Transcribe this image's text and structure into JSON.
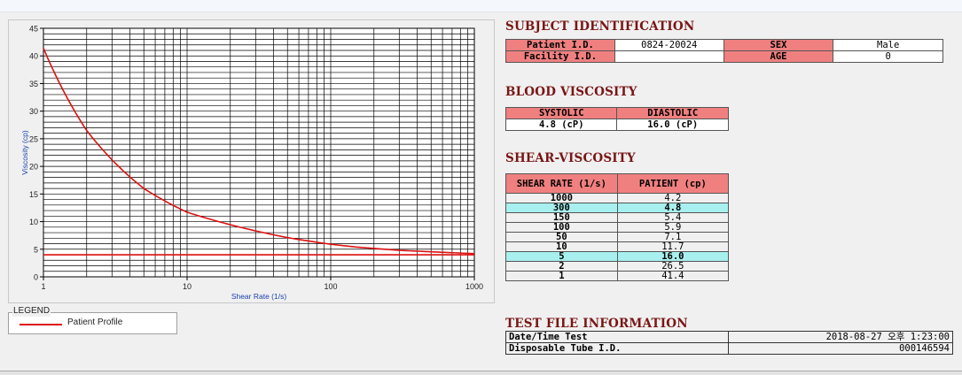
{
  "chart_data": {
    "type": "line",
    "xlabel": "Shear Rate (1/s)",
    "ylabel": "Viscosity (cp)",
    "xscale": "log",
    "xlim": [
      1,
      1000
    ],
    "ylim": [
      0,
      45
    ],
    "x_ticks": [
      "1",
      "10",
      "100",
      "1000"
    ],
    "y_ticks": [
      "0",
      "5",
      "10",
      "15",
      "20",
      "25",
      "30",
      "35",
      "40",
      "45"
    ],
    "grid": true,
    "series": [
      {
        "name": "Patient Profile",
        "color": "#dd1111",
        "x": [
          1,
          2,
          5,
          10,
          50,
          100,
          150,
          300,
          1000
        ],
        "y": [
          41.4,
          26.5,
          16.0,
          11.7,
          7.1,
          5.9,
          5.4,
          4.8,
          4.2
        ]
      },
      {
        "color": "#dd1111",
        "x": [
          1,
          1000
        ],
        "y": [
          4.0,
          4.0
        ]
      }
    ]
  },
  "legend": {
    "title": "LEGEND",
    "items": [
      {
        "label": "Patient Profile",
        "color": "#dd1111"
      }
    ]
  },
  "subject": {
    "title": "SUBJECT IDENTIFICATION",
    "patient_id_label": "Patient I.D.",
    "patient_id": "0824-20024",
    "sex_label": "SEX",
    "sex": "Male",
    "facility_id_label": "Facility I.D.",
    "facility_id": "",
    "age_label": "AGE",
    "age": "0"
  },
  "blood_viscosity": {
    "title": "BLOOD VISCOSITY",
    "systolic_label": "SYSTOLIC",
    "diastolic_label": "DIASTOLIC",
    "systolic": "4.8 (cP)",
    "diastolic": "16.0 (cP)"
  },
  "shear_viscosity": {
    "title": "SHEAR-VISCOSITY",
    "col_rate": "SHEAR RATE (1/s)",
    "col_patient": "PATIENT (cp)",
    "rows": [
      {
        "rate": "1000",
        "patient": "4.2",
        "highlight": false
      },
      {
        "rate": "300",
        "patient": "4.8",
        "highlight": true
      },
      {
        "rate": "150",
        "patient": "5.4",
        "highlight": false
      },
      {
        "rate": "100",
        "patient": "5.9",
        "highlight": false
      },
      {
        "rate": "50",
        "patient": "7.1",
        "highlight": false
      },
      {
        "rate": "10",
        "patient": "11.7",
        "highlight": false
      },
      {
        "rate": "5",
        "patient": "16.0",
        "highlight": true
      },
      {
        "rate": "2",
        "patient": "26.5",
        "highlight": false
      },
      {
        "rate": "1",
        "patient": "41.4",
        "highlight": false
      }
    ]
  },
  "test_file": {
    "title": "TEST FILE INFORMATION",
    "datetime_label": "Date/Time Test",
    "datetime": "2018-08-27  오후 1:23:00",
    "tube_label": "Disposable Tube I.D.",
    "tube": "000146594"
  }
}
